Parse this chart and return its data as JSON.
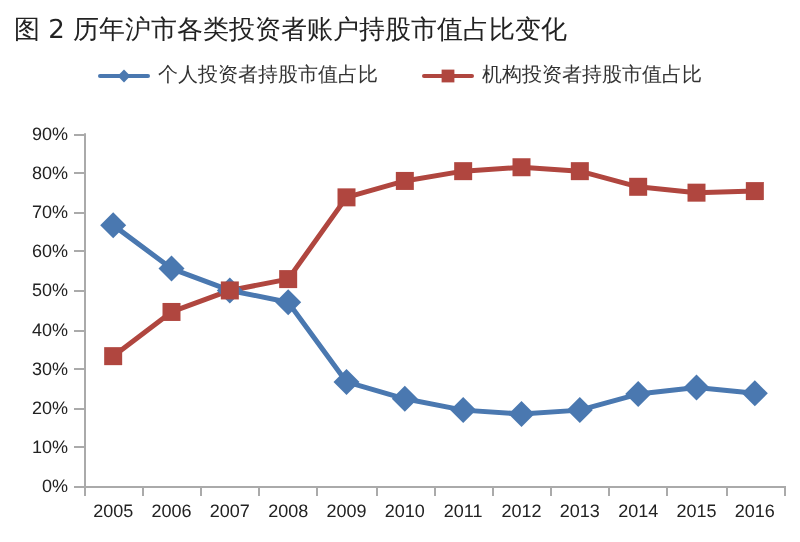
{
  "chart_data": {
    "type": "line",
    "title": "图 2 历年沪市各类投资者账户持股市值占比变化",
    "categories": [
      "2005",
      "2006",
      "2007",
      "2008",
      "2009",
      "2010",
      "2011",
      "2012",
      "2013",
      "2014",
      "2015",
      "2016"
    ],
    "series": [
      {
        "name": "个人投资者持股市值占比",
        "color": "#4a78b0",
        "marker": "diamond",
        "values": [
          66.7,
          55.6,
          50,
          47,
          26.6,
          22.3,
          19.4,
          18.4,
          19.4,
          23.5,
          25.2,
          23.7
        ]
      },
      {
        "name": "机构投资者持股市值占比",
        "color": "#b0463f",
        "marker": "square",
        "values": [
          33.2,
          44.5,
          50,
          52.9,
          73.8,
          78,
          80.5,
          81.5,
          80.5,
          76.5,
          75,
          75.4
        ]
      }
    ],
    "ylim": [
      0,
      90
    ],
    "yticks": [
      {
        "value": 0,
        "label": "0%"
      },
      {
        "value": 10,
        "label": "10%"
      },
      {
        "value": 20,
        "label": "20%"
      },
      {
        "value": 30,
        "label": "30%"
      },
      {
        "value": 40,
        "label": "40%"
      },
      {
        "value": 50,
        "label": "50%"
      },
      {
        "value": 60,
        "label": "60%"
      },
      {
        "value": 70,
        "label": "70%"
      },
      {
        "value": 80,
        "label": "80%"
      },
      {
        "value": 90,
        "label": "90%"
      }
    ],
    "grid": false,
    "legend": "top"
  }
}
